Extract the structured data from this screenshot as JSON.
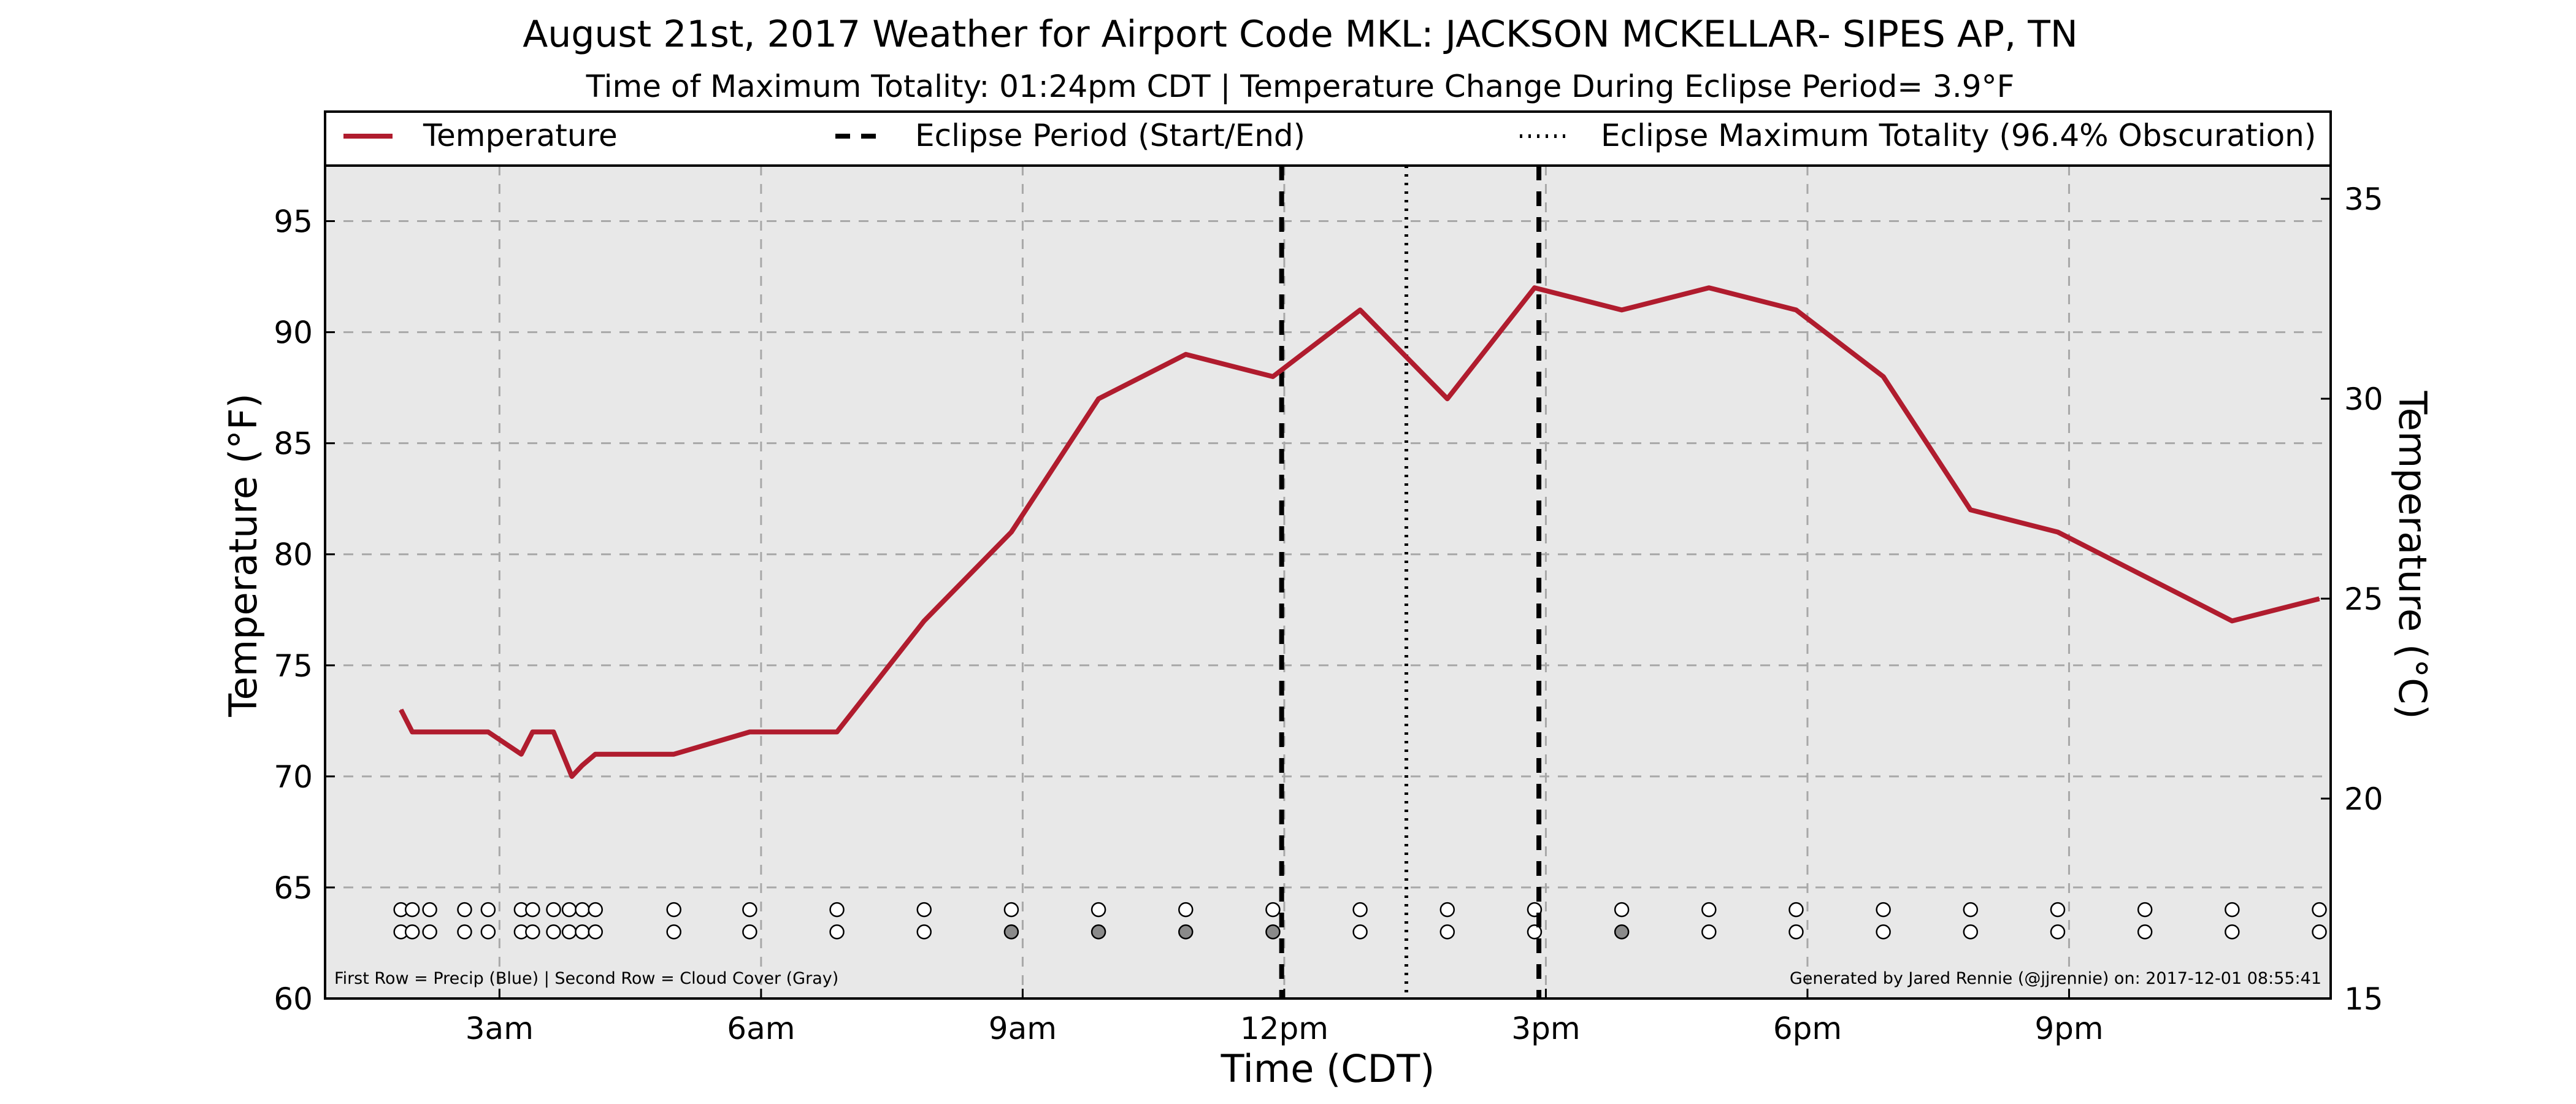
{
  "chart_data": {
    "type": "line",
    "title": "August 21st, 2017 Weather for Airport Code MKL: JACKSON MCKELLAR- SIPES AP, TN",
    "subtitle": "Time of Maximum Totality: 01:24pm CDT | Temperature Change During Eclipse Period= 3.9°F",
    "xlabel": "Time (CDT)",
    "ylabel": "Temperature (°F)",
    "ylabel_right": "Temperature (°C)",
    "xlim": [
      1.0,
      24.0
    ],
    "ylim": [
      60,
      97.5
    ],
    "ylim_right": [
      15,
      35.83
    ],
    "x_ticks": [
      {
        "x": 3,
        "label": "3am"
      },
      {
        "x": 6,
        "label": "6am"
      },
      {
        "x": 9,
        "label": "9am"
      },
      {
        "x": 12,
        "label": "12pm"
      },
      {
        "x": 15,
        "label": "3pm"
      },
      {
        "x": 18,
        "label": "6pm"
      },
      {
        "x": 21,
        "label": "9pm"
      }
    ],
    "y_ticks": [
      "60",
      "65",
      "70",
      "75",
      "80",
      "85",
      "90",
      "95"
    ],
    "y_ticks_right": [
      "15",
      "20",
      "25",
      "30",
      "35"
    ],
    "grid": true,
    "legend": {
      "placement": "top",
      "entries": [
        "Temperature",
        "Eclipse Period (Start/End)",
        "Eclipse Maximum Totality (96.4% Obscuration)"
      ]
    },
    "series": [
      {
        "name": "Temperature",
        "color": "#b01c2e",
        "x": [
          1.87,
          2.0,
          2.2,
          2.87,
          3.25,
          3.38,
          3.62,
          3.83,
          3.95,
          4.1,
          5.0,
          5.87,
          6.87,
          7.87,
          8.87,
          9.87,
          10.87,
          11.87,
          12.87,
          13.87,
          14.87,
          15.87,
          16.87,
          17.87,
          18.87,
          19.87,
          20.87,
          21.87,
          22.87,
          23.87
        ],
        "values": [
          73,
          72,
          72,
          72,
          71,
          72,
          72,
          70,
          70.5,
          71,
          71,
          72,
          72,
          77,
          81,
          87,
          89,
          88,
          91,
          87,
          92,
          91,
          92,
          91,
          88,
          82,
          81,
          79,
          77,
          78
        ]
      }
    ],
    "eclipse_start_x": 11.97,
    "eclipse_end_x": 14.92,
    "eclipse_max_x": 13.4,
    "eclipse_line_color": "#000000",
    "obs_x": [
      1.87,
      2.0,
      2.2,
      2.6,
      2.87,
      3.25,
      3.38,
      3.62,
      3.8,
      3.95,
      4.1,
      5.0,
      5.87,
      6.87,
      7.87,
      8.87,
      9.87,
      10.87,
      11.87,
      12.87,
      13.87,
      14.87,
      15.87,
      16.87,
      17.87,
      18.87,
      19.87,
      20.87,
      21.87,
      22.87,
      23.87
    ],
    "precip_row_y": 64,
    "cloud_row_y": 63,
    "cloud_shaded_x": [
      8.87,
      9.87,
      10.87,
      11.87,
      15.87
    ],
    "cloud_shaded_color": "#8a8a8a",
    "annotation_left": "First Row = Precip (Blue) | Second Row = Cloud Cover (Gray)",
    "annotation_right": "Generated by Jared Rennie (@jjrennie) on: 2017-12-01 08:55:41",
    "plot_background": "#e8e8e8"
  }
}
